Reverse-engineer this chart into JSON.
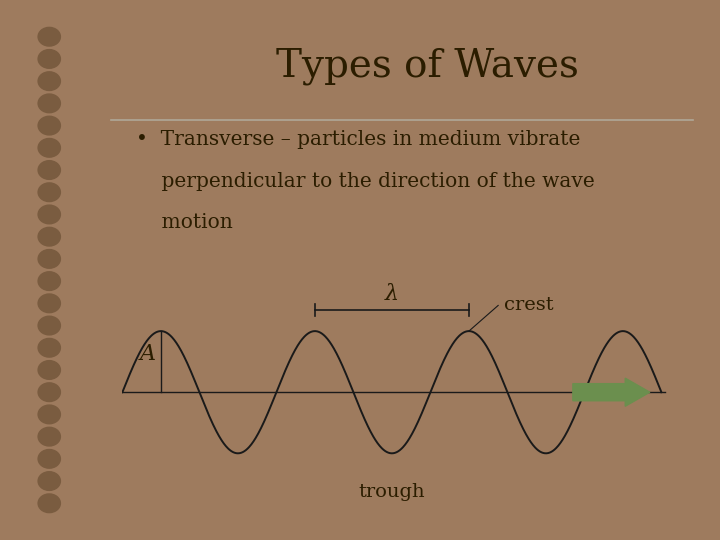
{
  "title": "Types of Waves",
  "title_fontsize": 28,
  "bullet_text_line1": "•  Transverse – particles in medium vibrate",
  "bullet_text_line2": "    perpendicular to the direction of the wave",
  "bullet_text_line3": "    motion",
  "label_A": "A",
  "label_lambda": "λ",
  "label_crest": "crest",
  "label_trough": "trough",
  "bg_outer": "#9e7b5e",
  "bg_page": "#e8e4d4",
  "text_color": "#2b1d00",
  "wave_color": "#1a1a1a",
  "arrow_color": "#6b8f4e",
  "line_separator_color": "#b0a898",
  "spiral_outer": "#9e7b5e",
  "spiral_inner": "#7a5c40"
}
